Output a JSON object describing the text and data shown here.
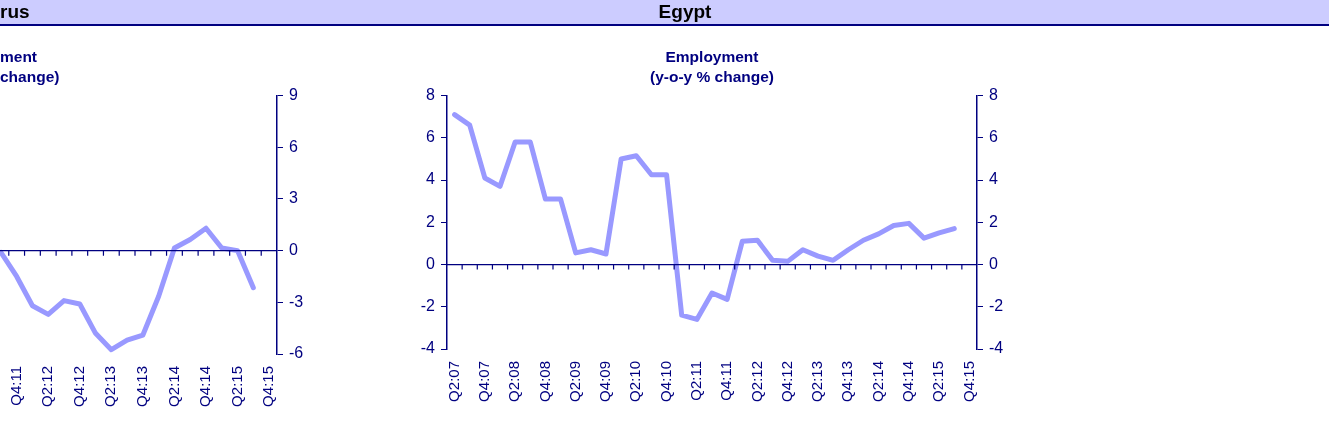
{
  "chart_data": [
    {
      "type": "line",
      "title": "rus",
      "subtitle": "ment\nchange)",
      "categories": [
        null,
        "Q4:11",
        null,
        "Q2:12",
        null,
        "Q4:12",
        null,
        "Q2:13",
        null,
        "Q4:13",
        null,
        "Q2:14",
        null,
        "Q4:14",
        null,
        "Q2:15",
        null,
        "Q4:15"
      ],
      "series": [
        {
          "color": "#9999ff",
          "values": [
            -0.1,
            -1.5,
            -3.2,
            -3.7,
            -2.9,
            -3.1,
            -4.8,
            -5.75,
            -5.2,
            -4.9,
            -2.65,
            0.15,
            0.65,
            1.3,
            0.15,
            0,
            -2.15,
            null
          ]
        }
      ],
      "ylim": [
        -6,
        9
      ],
      "yticks": [
        -6,
        -3,
        0,
        3,
        6,
        9
      ],
      "marker": "none",
      "line_style": "solid",
      "ref_lines": [
        {
          "axis": "y",
          "value": 0,
          "color": "#000080"
        }
      ]
    },
    {
      "type": "line",
      "title": "Egypt",
      "subtitle": "Employment\n(y-o-y % change)",
      "categories": [
        "Q2:07",
        null,
        "Q4:07",
        null,
        "Q2:08",
        null,
        "Q4:08",
        null,
        "Q2:09",
        null,
        "Q4:09",
        null,
        "Q2:10",
        null,
        "Q4:10",
        null,
        "Q2:11",
        null,
        "Q4:11",
        null,
        "Q2:12",
        null,
        "Q4:12",
        null,
        "Q2:13",
        null,
        "Q4:13",
        null,
        "Q2:14",
        null,
        "Q4:14",
        null,
        "Q2:15",
        null,
        "Q4:15"
      ],
      "series": [
        {
          "color": "#9999ff",
          "values": [
            7.1,
            6.6,
            4.1,
            3.7,
            5.8,
            5.8,
            3.1,
            3.1,
            0.55,
            0.7,
            0.5,
            5.0,
            5.15,
            4.25,
            4.25,
            -2.4,
            -2.6,
            -1.35,
            -1.65,
            1.1,
            1.15,
            0.2,
            0.15,
            0.7,
            0.4,
            0.2,
            0.7,
            1.15,
            1.45,
            1.85,
            1.95,
            1.25,
            1.5,
            1.7,
            null
          ]
        }
      ],
      "ylim": [
        -4,
        8
      ],
      "yticks": [
        -4,
        -2,
        0,
        2,
        4,
        6,
        8
      ],
      "y2lim": [
        -4,
        8
      ],
      "y2ticks": [
        -4,
        -2,
        0,
        2,
        4,
        6,
        8
      ],
      "marker": "none",
      "line_style": "solid",
      "ref_lines": [
        {
          "axis": "y",
          "value": 0,
          "color": "#000080"
        }
      ]
    }
  ]
}
